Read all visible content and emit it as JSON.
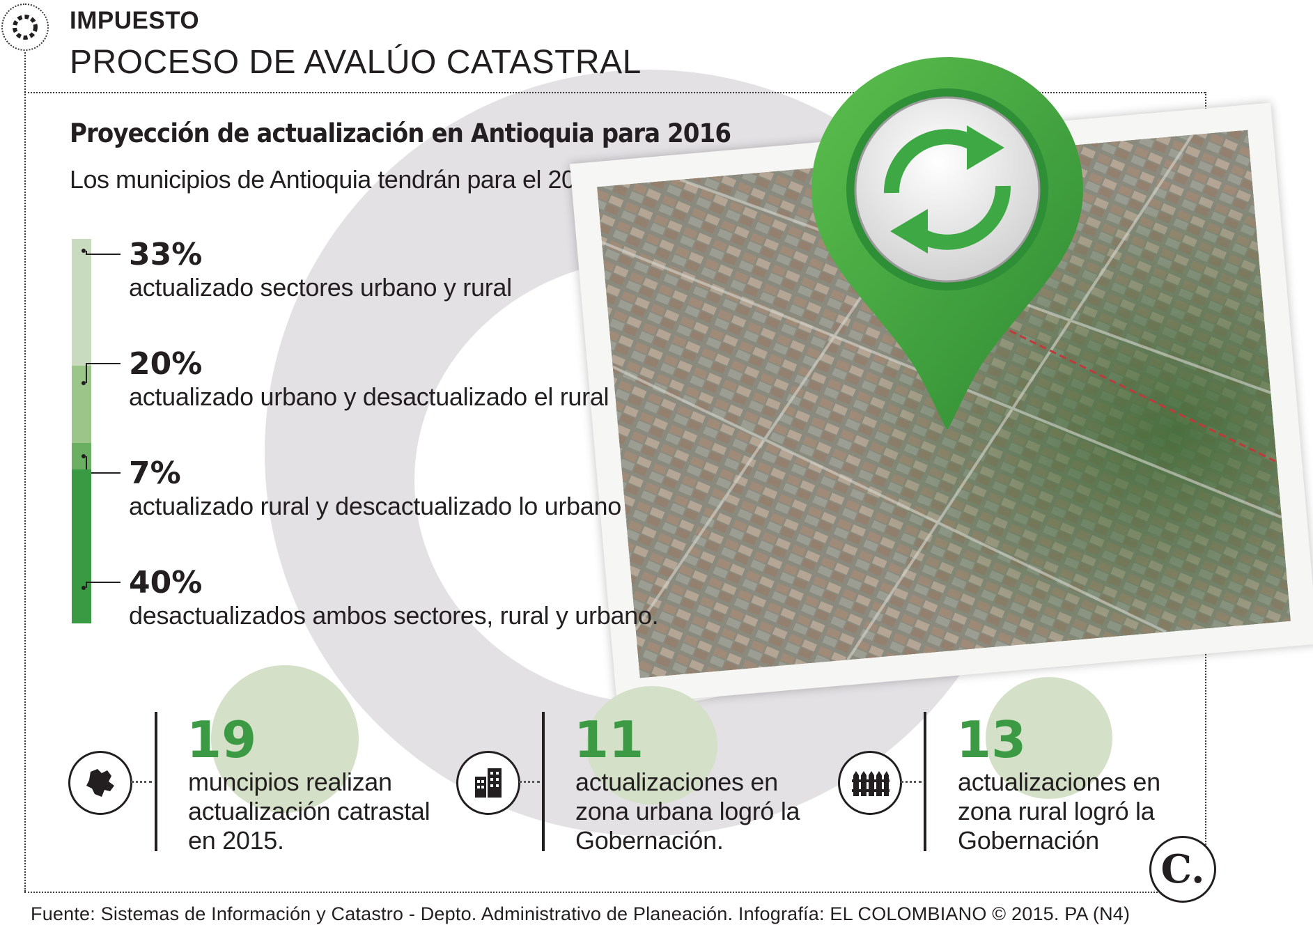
{
  "header": {
    "kicker": "IMPUESTO",
    "title": "PROCESO DE AVALÚO CATASTRAL"
  },
  "section": {
    "subtitle": "Proyección de actualización en Antioquia para 2016",
    "intro": "Los municipios de Antioquia tendrán para el 2016:"
  },
  "breakdown": [
    {
      "pct": "33%",
      "label": "actualizado sectores urbano y rural",
      "share": 33,
      "color": "#c8dbbf"
    },
    {
      "pct": "20%",
      "label": "actualizado urbano y desactualizado el rural",
      "share": 20,
      "color": "#9cc58a"
    },
    {
      "pct": "7%",
      "label": "actualizado rural y descactualizado lo urbano",
      "share": 7,
      "color": "#6bb062"
    },
    {
      "pct": "40%",
      "label": "desactualizados ambos sectores, rural y urbano.",
      "share": 40,
      "color": "#3a9a44"
    }
  ],
  "stats": [
    {
      "number": "19",
      "line1": "muncipios realizan",
      "line2": "actualización catrastal",
      "line3": "en 2015.",
      "icon": "antioquia-map-icon"
    },
    {
      "number": "11",
      "line1": "actualizaciones en",
      "line2": "zona urbana logró la",
      "line3": "Gobernación.",
      "icon": "buildings-icon"
    },
    {
      "number": "13",
      "line1": "actualizaciones en",
      "line2": "zona rural logró la",
      "line3": "Gobernación",
      "icon": "fence-icon"
    }
  ],
  "footer": {
    "source": "Fuente: Sistemas de Información y Catastro - Depto. Administrativo de Planeación. Infografía: EL COLOMBIANO © 2015. PA (N4)"
  },
  "brand": {
    "mark": "C."
  },
  "colors": {
    "accent_green": "#3b9a43",
    "ring_gray": "#e3e1e4",
    "circle_green_light": "#d4e0c7"
  }
}
